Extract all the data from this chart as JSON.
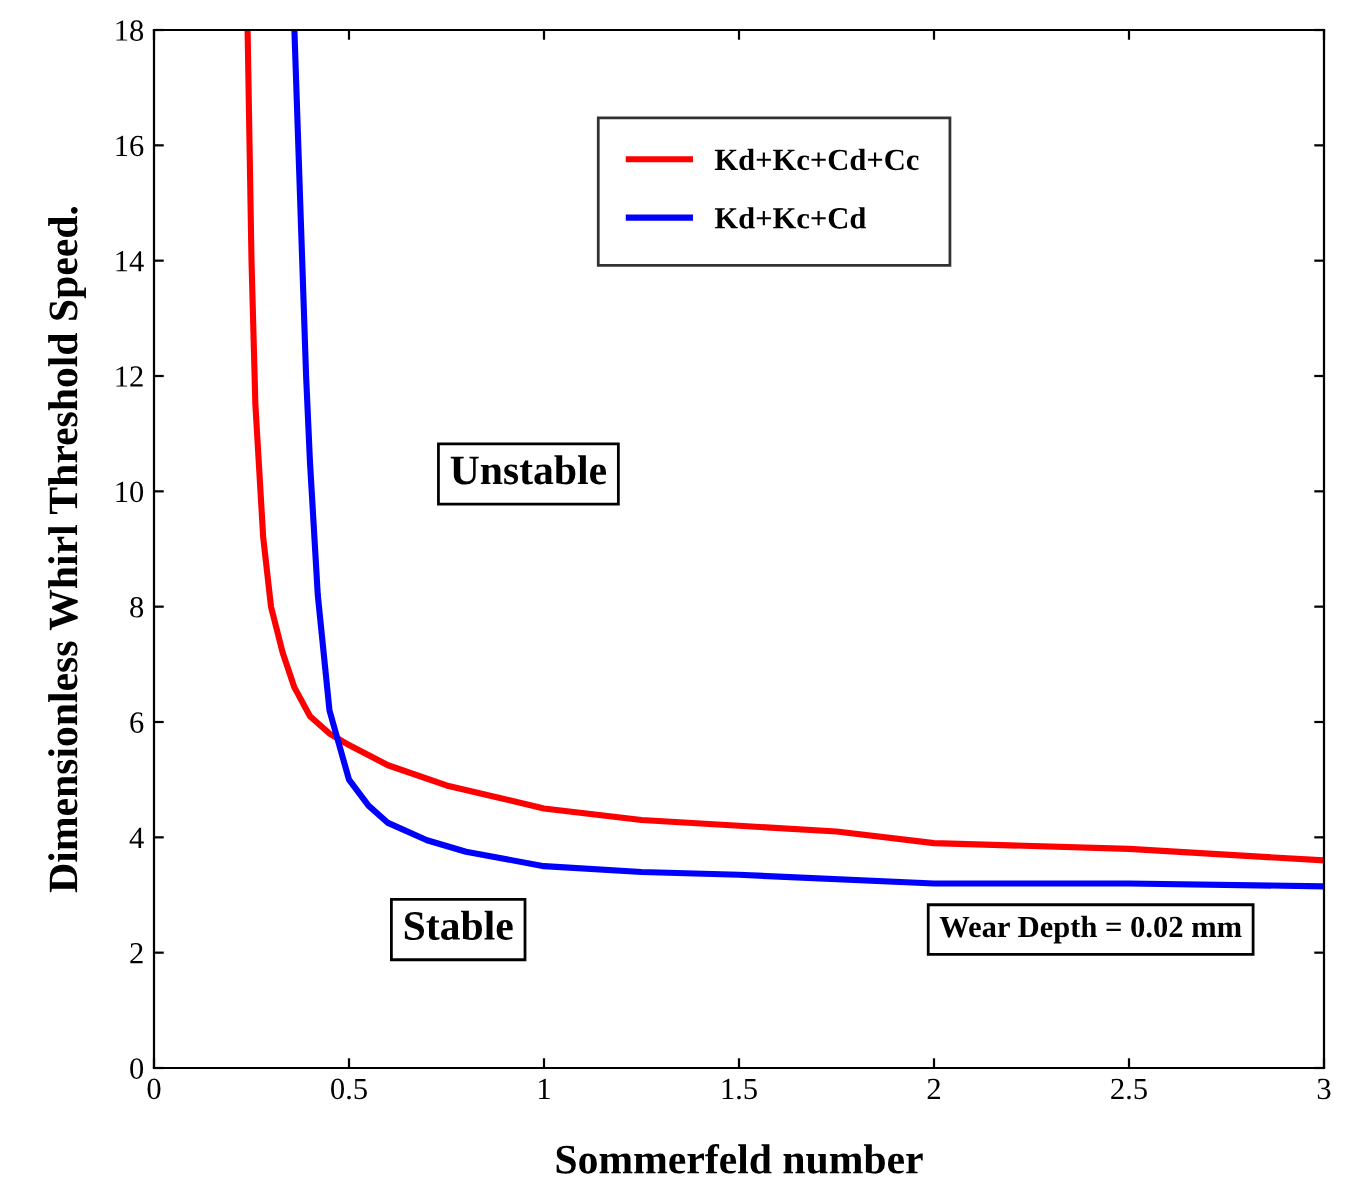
{
  "chart_data": {
    "type": "line",
    "xlabel": "Sommerfeld number",
    "ylabel": "Dimensionless Whirl Threshold Speed.",
    "xlim": [
      0,
      3
    ],
    "ylim": [
      0,
      18
    ],
    "xticks": [
      0,
      0.5,
      1,
      1.5,
      2,
      2.5,
      3
    ],
    "yticks": [
      0,
      2,
      4,
      6,
      8,
      10,
      12,
      14,
      16,
      18
    ],
    "grid": false,
    "legend": "top",
    "marker": "none",
    "line_style": "solid",
    "annotations": [
      "Unstable",
      "Stable",
      "Wear Depth = 0.02 mm"
    ],
    "series": [
      {
        "name": "Kd+Kc+Cd+Cc",
        "color": "#ff0000",
        "x": [
          0.24,
          0.25,
          0.26,
          0.28,
          0.3,
          0.33,
          0.36,
          0.4,
          0.45,
          0.5,
          0.6,
          0.75,
          1.0,
          1.25,
          1.5,
          1.75,
          2.0,
          2.5,
          3.0
        ],
        "values": [
          18,
          14,
          11.5,
          9.2,
          8.0,
          7.2,
          6.6,
          6.1,
          5.8,
          5.6,
          5.25,
          4.9,
          4.5,
          4.3,
          4.2,
          4.1,
          3.9,
          3.8,
          3.6
        ]
      },
      {
        "name": "Kd+Kc+Cd",
        "color": "#0000ff",
        "x": [
          0.36,
          0.37,
          0.38,
          0.39,
          0.4,
          0.42,
          0.45,
          0.5,
          0.55,
          0.6,
          0.7,
          0.8,
          1.0,
          1.25,
          1.5,
          2.0,
          2.5,
          3.0
        ],
        "values": [
          18,
          16,
          14,
          12,
          10.5,
          8.2,
          6.2,
          5.0,
          4.55,
          4.25,
          3.95,
          3.75,
          3.5,
          3.4,
          3.35,
          3.2,
          3.2,
          3.15
        ]
      }
    ]
  }
}
